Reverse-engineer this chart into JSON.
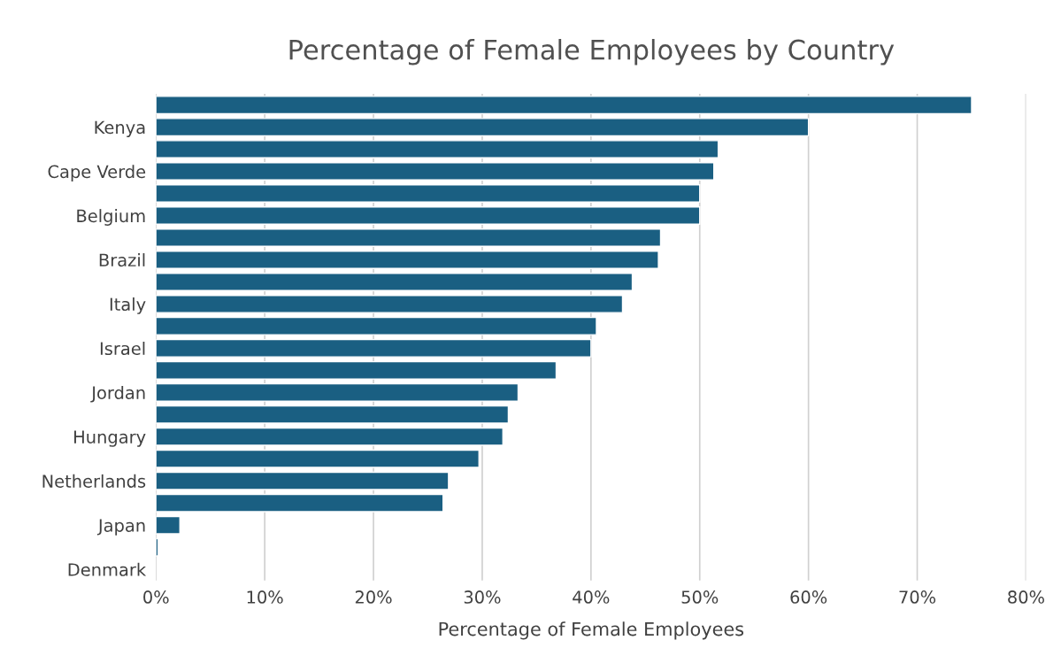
{
  "chart_data": {
    "type": "bar",
    "orientation": "horizontal",
    "title": "Percentage of Female Employees by Country",
    "xlabel": "Percentage of Female Employees",
    "categories": [
      null,
      "Kenya",
      null,
      "Cape Verde",
      null,
      "Belgium",
      null,
      "Brazil",
      null,
      "Italy",
      null,
      "Israel",
      null,
      "Jordan",
      null,
      "Hungary",
      null,
      "Netherlands",
      null,
      "Japan",
      null,
      "Denmark"
    ],
    "values": [
      75.0,
      60.0,
      51.7,
      51.3,
      50.0,
      50.0,
      46.4,
      46.2,
      43.8,
      42.9,
      40.5,
      40.0,
      36.8,
      33.3,
      32.4,
      31.9,
      29.7,
      26.9,
      26.4,
      2.2,
      0.2,
      null
    ],
    "color": "#1a5f82",
    "xlim": [
      0,
      80
    ],
    "xticks": [
      {
        "value": 0,
        "label": "0%"
      },
      {
        "value": 10,
        "label": "10%"
      },
      {
        "value": 20,
        "label": "20%"
      },
      {
        "value": 30,
        "label": "30%"
      },
      {
        "value": 40,
        "label": "40%"
      },
      {
        "value": 50,
        "label": "50%"
      },
      {
        "value": 60,
        "label": "60%"
      },
      {
        "value": 70,
        "label": "70%"
      },
      {
        "value": 80,
        "label": "80%"
      }
    ],
    "grid": "x"
  }
}
